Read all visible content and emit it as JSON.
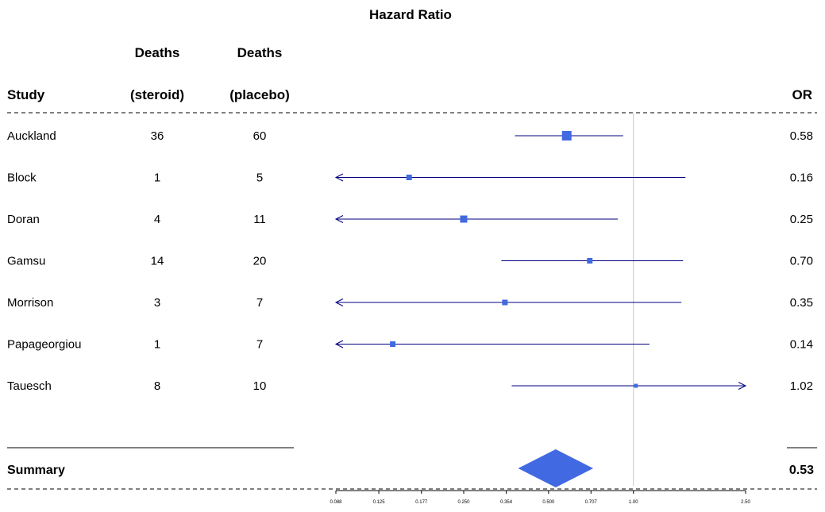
{
  "chart_data": {
    "type": "forest",
    "title": "Hazard Ratio",
    "x_scale": "log",
    "xlim": [
      0.088,
      2.5
    ],
    "reference_line": 1.0,
    "columns": {
      "study": {
        "header_line2": "Study"
      },
      "steroid": {
        "header_line1": "Deaths",
        "header_line2": "(steroid)"
      },
      "placebo": {
        "header_line1": "Deaths",
        "header_line2": "(placebo)"
      },
      "or": {
        "header_line2": "OR"
      }
    },
    "x_ticks": [
      "0.088",
      "0.125",
      "0.177",
      "0.250",
      "0.354",
      "0.500",
      "0.707",
      "1.00",
      "2.50"
    ],
    "x_tick_values": [
      0.088,
      0.125,
      0.177,
      0.25,
      0.354,
      0.5,
      0.707,
      1.0,
      2.5
    ],
    "studies": [
      {
        "name": "Auckland",
        "steroid": "36",
        "placebo": "60",
        "or_label": "0.58",
        "or": 0.58,
        "lower": 0.38,
        "upper": 0.92,
        "size": 12
      },
      {
        "name": "Block",
        "steroid": "1",
        "placebo": "5",
        "or_label": "0.16",
        "or": 0.16,
        "lower": 0.088,
        "upper": 1.53,
        "size": 7,
        "arrow_left": true
      },
      {
        "name": "Doran",
        "steroid": "4",
        "placebo": "11",
        "or_label": "0.25",
        "or": 0.25,
        "lower": 0.088,
        "upper": 0.88,
        "size": 9,
        "arrow_left": true
      },
      {
        "name": "Gamsu",
        "steroid": "14",
        "placebo": "20",
        "or_label": "0.70",
        "or": 0.7,
        "lower": 0.34,
        "upper": 1.5,
        "size": 7
      },
      {
        "name": "Morrison",
        "steroid": "3",
        "placebo": "7",
        "or_label": "0.35",
        "or": 0.35,
        "lower": 0.088,
        "upper": 1.48,
        "size": 7,
        "arrow_left": true
      },
      {
        "name": "Papageorgiou",
        "steroid": "1",
        "placebo": "7",
        "or_label": "0.14",
        "or": 0.14,
        "lower": 0.088,
        "upper": 1.14,
        "size": 7,
        "arrow_left": true
      },
      {
        "name": "Tauesch",
        "steroid": "8",
        "placebo": "10",
        "or_label": "1.02",
        "or": 1.02,
        "lower": 0.37,
        "upper": 2.5,
        "size": 5,
        "arrow_right": true
      }
    ],
    "summary": {
      "label": "Summary",
      "or_label": "0.53",
      "or": 0.53,
      "lower": 0.39,
      "upper": 0.72
    },
    "colors": {
      "box": "#4169e1",
      "ci_line": "#000080",
      "ref_line": "#c8c8c8"
    }
  }
}
